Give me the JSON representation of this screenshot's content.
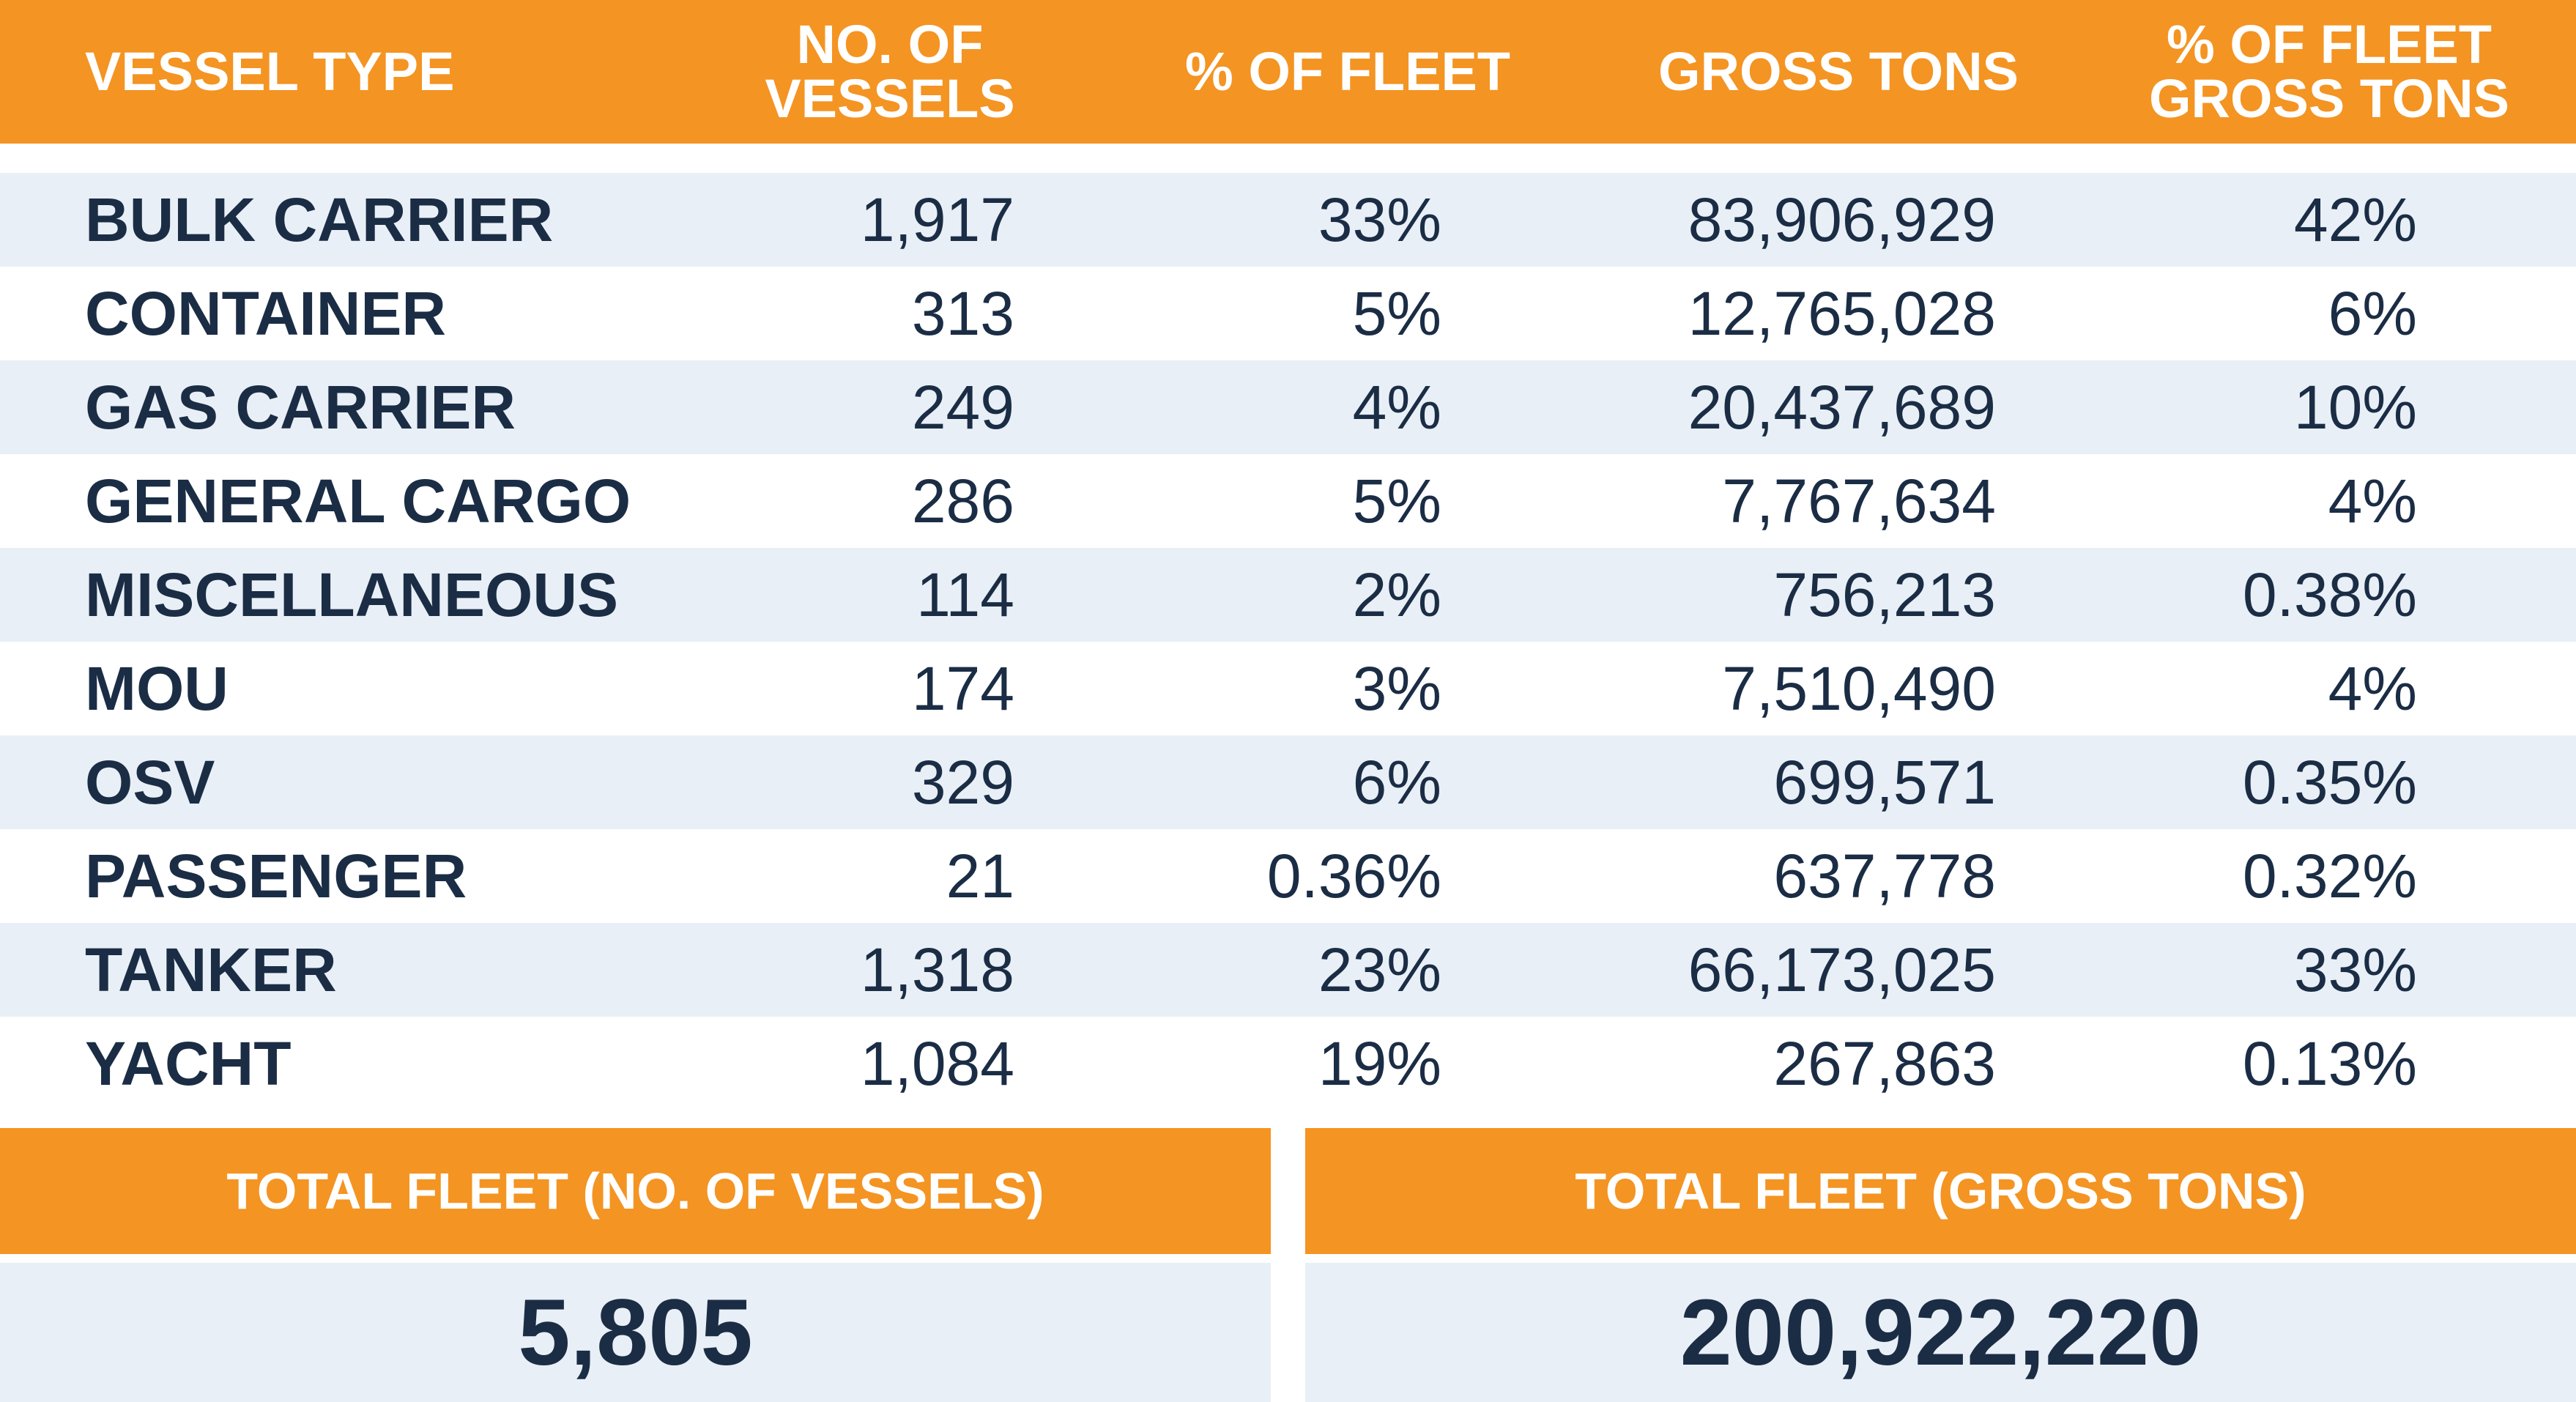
{
  "chart_data": {
    "type": "table",
    "columns": [
      "VESSEL TYPE",
      "NO. OF VESSELS",
      "% OF FLEET",
      "GROSS TONS",
      "% OF FLEET GROSS TONS"
    ],
    "rows": [
      {
        "type": "BULK CARRIER",
        "vessels": "1,917",
        "pct_fleet": "33%",
        "gross_tons": "83,906,929",
        "pct_gross": "42%"
      },
      {
        "type": "CONTAINER",
        "vessels": "313",
        "pct_fleet": "5%",
        "gross_tons": "12,765,028",
        "pct_gross": "6%"
      },
      {
        "type": "GAS CARRIER",
        "vessels": "249",
        "pct_fleet": "4%",
        "gross_tons": "20,437,689",
        "pct_gross": "10%"
      },
      {
        "type": "GENERAL CARGO",
        "vessels": "286",
        "pct_fleet": "5%",
        "gross_tons": "7,767,634",
        "pct_gross": "4%"
      },
      {
        "type": "MISCELLANEOUS",
        "vessels": "114",
        "pct_fleet": "2%",
        "gross_tons": "756,213",
        "pct_gross": "0.38%"
      },
      {
        "type": "MOU",
        "vessels": "174",
        "pct_fleet": "3%",
        "gross_tons": "7,510,490",
        "pct_gross": "4%"
      },
      {
        "type": "OSV",
        "vessels": "329",
        "pct_fleet": "6%",
        "gross_tons": "699,571",
        "pct_gross": "0.35%"
      },
      {
        "type": "PASSENGER",
        "vessels": "21",
        "pct_fleet": "0.36%",
        "gross_tons": "637,778",
        "pct_gross": "0.32%"
      },
      {
        "type": "TANKER",
        "vessels": "1,318",
        "pct_fleet": "23%",
        "gross_tons": "66,173,025",
        "pct_gross": "33%"
      },
      {
        "type": "YACHT",
        "vessels": "1,084",
        "pct_fleet": "19%",
        "gross_tons": "267,863",
        "pct_gross": "0.13%"
      }
    ],
    "totals": {
      "vessels_label": "TOTAL FLEET (NO. OF VESSELS)",
      "vessels_value": "5,805",
      "gross_label": "TOTAL FLEET (GROSS TONS)",
      "gross_value": "200,922,220"
    }
  },
  "colors": {
    "header": "#F49422",
    "row_shade": "#E8EFF6",
    "text": "#1B2D45",
    "header_text": "#FFFFFF"
  }
}
